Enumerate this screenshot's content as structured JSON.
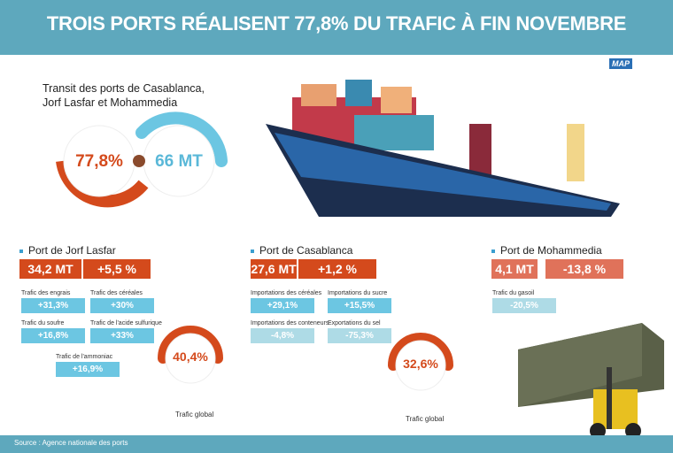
{
  "header": {
    "title": "TROIS PORTS RÉALISENT 77,8% DU TRAFIC À FIN NOVEMBRE",
    "logo": "MAP"
  },
  "transit": {
    "title_line1": "Transit des ports de Casablanca,",
    "title_line2": "Jorf Lasfar et Mohammedia",
    "share": "77,8%",
    "total": "66 MT"
  },
  "ports": [
    {
      "name": "Port de Jorf Lasfar",
      "volume": "34,2 MT",
      "change": "+5,5 %",
      "global_share": "40,4%",
      "global_label": "Trafic global",
      "items": [
        {
          "label": "Trafic des engrais",
          "value": "+31,3%"
        },
        {
          "label": "Trafic des céréales",
          "value": "+30%"
        },
        {
          "label": "Trafic du soufre",
          "value": "+16,8%"
        },
        {
          "label": "Trafic de l'acide sulfurique",
          "value": "+33%"
        },
        {
          "label": "Trafic de l'ammoniac",
          "value": "+16,9%"
        }
      ]
    },
    {
      "name": "Port de Casablanca",
      "volume": "27,6 MT",
      "change": "+1,2 %",
      "global_share": "32,6%",
      "global_label": "Trafic global",
      "items": [
        {
          "label": "Importations des céréales",
          "value": "+29,1%"
        },
        {
          "label": "Importations du sucre",
          "value": "+15,5%"
        },
        {
          "label": "Importations des conteneurs",
          "value": "-4,8%"
        },
        {
          "label": "Exportations du sel",
          "value": "-75,3%"
        }
      ]
    },
    {
      "name": "Port de Mohammedia",
      "volume": "4,1 MT",
      "change": "-13,8 %",
      "items": [
        {
          "label": "Trafic du gasoil",
          "value": "-20,5%"
        }
      ]
    }
  ],
  "footer": {
    "source": "Source : Agence nationale des ports"
  },
  "colors": {
    "banner": "#5ea8bd",
    "orange": "#d44a1c",
    "blue": "#6cc6e2"
  }
}
